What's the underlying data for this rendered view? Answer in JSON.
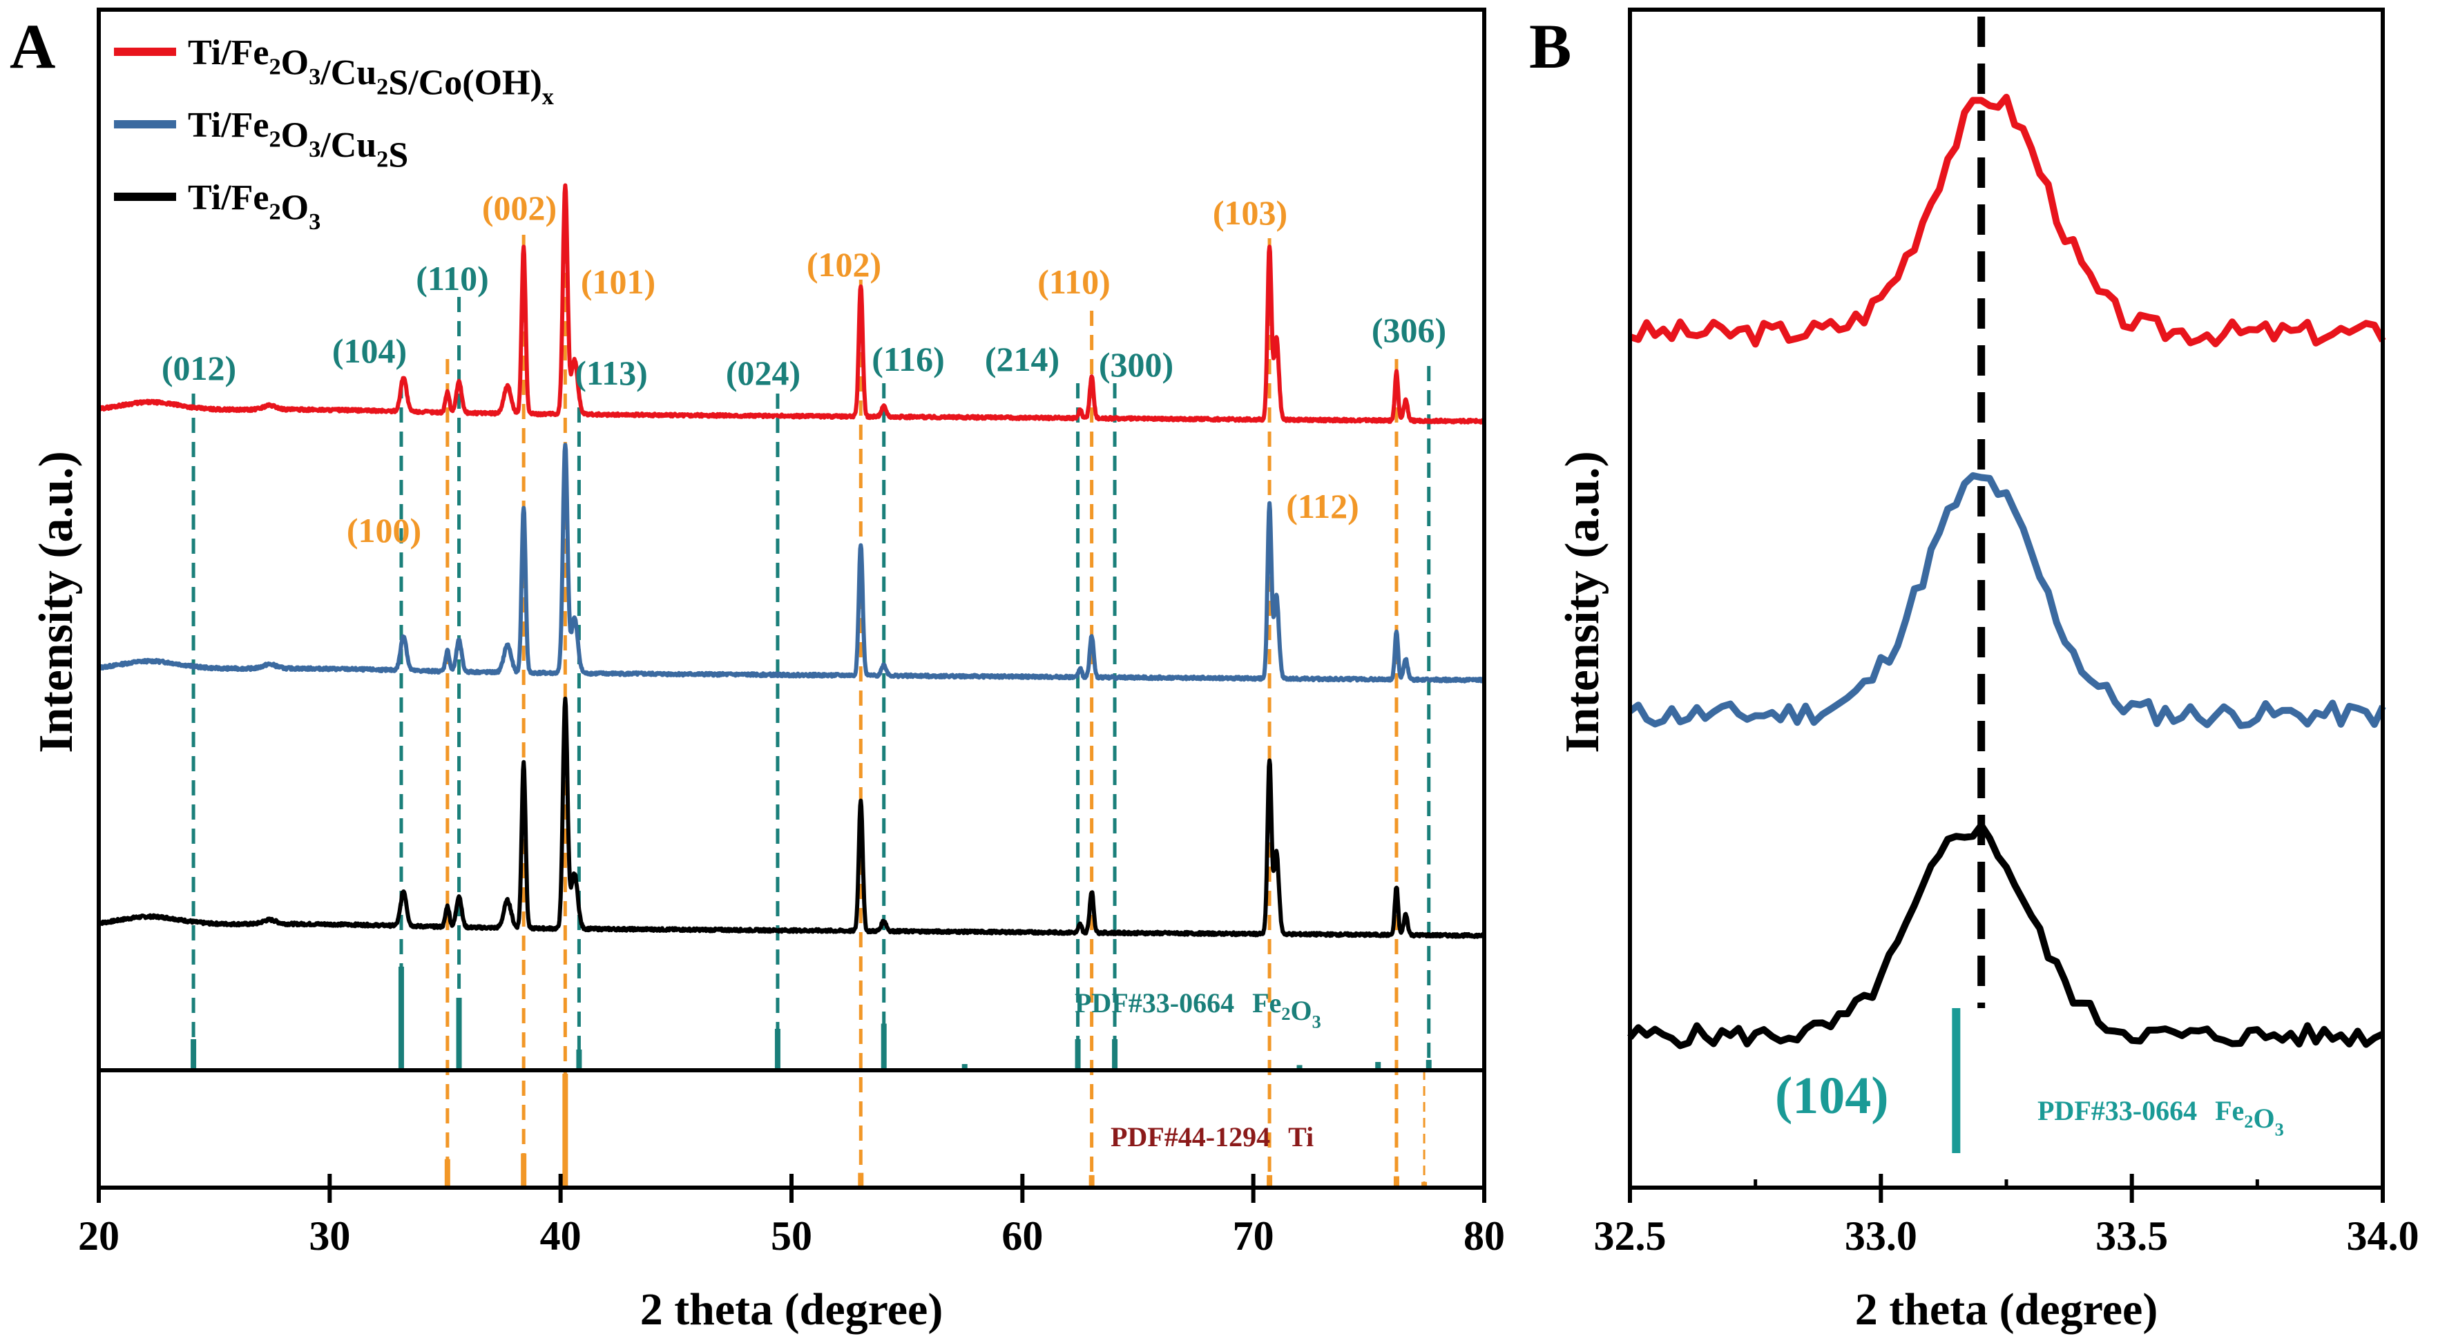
{
  "colors": {
    "red": "#e8141c",
    "blue": "#3b6aa0",
    "black": "#000000",
    "teal": "#1a7f7a",
    "orange": "#f29727",
    "pdfTi": "#8b1a1a",
    "tealB": "#1a9a96"
  },
  "panelA": {
    "letter": "A",
    "xlabel": "2 theta (degree)",
    "ylabel": "Intensity (a.u.)",
    "ticks": [
      "20",
      "30",
      "40",
      "50",
      "60",
      "70",
      "80"
    ],
    "legend": [
      {
        "label": "Ti/Fe2O3/Cu2S/Co(OH)x",
        "color": "#e8141c"
      },
      {
        "label": "Ti/Fe2O3/Cu2S",
        "color": "#3b6aa0"
      },
      {
        "label": "Ti/Fe2O3",
        "color": "#000000"
      }
    ],
    "pdf_fe2o3": {
      "label": "PDF#33-0664",
      "formula": "Fe2O3"
    },
    "pdf_ti": {
      "label": "PDF#44-1294",
      "formula": "Ti"
    },
    "teal_labels": [
      "(012)",
      "(104)",
      "(110)",
      "(113)",
      "(024)",
      "(116)",
      "(214)",
      "(300)",
      "(306)"
    ],
    "orange_labels": [
      "(100)",
      "(002)",
      "(101)",
      "(102)",
      "(110)",
      "(103)",
      "(112)"
    ]
  },
  "panelB": {
    "letter": "B",
    "xlabel": "2 theta (degree)",
    "ylabel": "Intensity (a.u.)",
    "ticks": [
      "32.5",
      "33.0",
      "33.5",
      "34.0"
    ],
    "peak_label": "(104)",
    "pdf_fe2o3": {
      "label": "PDF#33-0664",
      "formula": "Fe2O3"
    }
  },
  "chart_data": [
    {
      "type": "line",
      "xlabel": "2 theta (degree)",
      "ylabel": "Intensity (a.u.)",
      "xlim": [
        20,
        80
      ],
      "series": [
        {
          "name": "Ti/Fe2O3/Cu2S/Co(OH)x"
        },
        {
          "name": "Ti/Fe2O3/Cu2S"
        },
        {
          "name": "Ti/Fe2O3"
        }
      ],
      "peaks_fe2o3": [
        {
          "hkl": "(012)",
          "x": 24.1
        },
        {
          "hkl": "(104)",
          "x": 33.1
        },
        {
          "hkl": "(110)",
          "x": 35.6
        },
        {
          "hkl": "(113)",
          "x": 40.8
        },
        {
          "hkl": "(024)",
          "x": 49.4
        },
        {
          "hkl": "(116)",
          "x": 54.0
        },
        {
          "hkl": "(214)",
          "x": 62.4
        },
        {
          "hkl": "(300)",
          "x": 64.0
        },
        {
          "hkl": "(306)",
          "x": 77.6
        }
      ],
      "peaks_ti": [
        {
          "hkl": "(100)",
          "x": 35.1
        },
        {
          "hkl": "(002)",
          "x": 38.4
        },
        {
          "hkl": "(101)",
          "x": 40.2
        },
        {
          "hkl": "(102)",
          "x": 53.0
        },
        {
          "hkl": "(110)",
          "x": 63.0
        },
        {
          "hkl": "(103)",
          "x": 70.7
        },
        {
          "hkl": "(112)",
          "x": 76.2
        }
      ],
      "reference_pdf33_0664": [
        [
          24.1,
          0.3
        ],
        [
          33.1,
          1.0
        ],
        [
          35.6,
          0.7
        ],
        [
          40.8,
          0.2
        ],
        [
          49.4,
          0.4
        ],
        [
          54.0,
          0.45
        ],
        [
          57.5,
          0.06
        ],
        [
          62.4,
          0.3
        ],
        [
          64.0,
          0.3
        ],
        [
          72.0,
          0.05
        ],
        [
          75.4,
          0.08
        ],
        [
          77.6,
          0.1
        ]
      ],
      "reference_pdf44_1294": [
        [
          35.1,
          0.25
        ],
        [
          38.4,
          0.3
        ],
        [
          40.2,
          1.0
        ],
        [
          53.0,
          0.13
        ],
        [
          63.0,
          0.11
        ],
        [
          70.7,
          0.11
        ],
        [
          76.2,
          0.1
        ],
        [
          77.4,
          0.05
        ]
      ]
    },
    {
      "type": "line",
      "xlabel": "2 theta (degree)",
      "ylabel": "Intensity (a.u.)",
      "xlim": [
        32.5,
        34.0
      ],
      "reference_line": 33.2,
      "reference_peak": {
        "hkl": "(104)",
        "x": 33.15
      },
      "series": [
        {
          "name": "Ti/Fe2O3/Cu2S/Co(OH)x",
          "peak": 33.22
        },
        {
          "name": "Ti/Fe2O3/Cu2S",
          "peak": 33.2
        },
        {
          "name": "Ti/Fe2O3",
          "peak": 33.18
        }
      ]
    }
  ]
}
